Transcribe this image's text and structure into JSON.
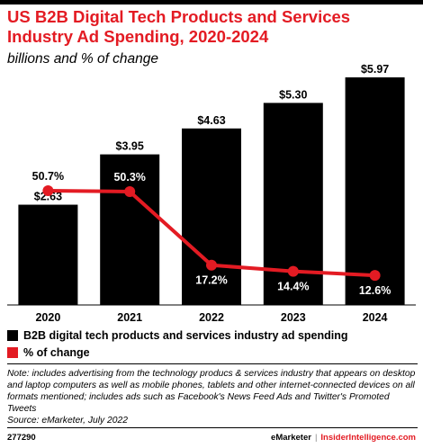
{
  "title": "US B2B Digital Tech Products and Services Industry Ad Spending, 2020-2024",
  "subtitle": "billions and % of change",
  "chart_data": {
    "type": "bar",
    "categories": [
      "2020",
      "2021",
      "2022",
      "2023",
      "2024"
    ],
    "series": [
      {
        "name": "B2B digital tech products and services industry ad spending",
        "type": "bar",
        "values": [
          2.63,
          3.95,
          4.63,
          5.3,
          5.97
        ],
        "labels": [
          "$2.63",
          "$3.95",
          "$4.63",
          "$5.30",
          "$5.97"
        ],
        "color": "#000000"
      },
      {
        "name": "% of change",
        "type": "line",
        "values": [
          50.7,
          50.3,
          17.2,
          14.4,
          12.6
        ],
        "labels": [
          "50.7%",
          "50.3%",
          "17.2%",
          "14.4%",
          "12.6%"
        ],
        "color": "#e31b23"
      }
    ],
    "legend_position": "bottom"
  },
  "legend": {
    "items": [
      {
        "label": "B2B digital tech products and services industry ad spending",
        "color": "#000000"
      },
      {
        "label": "% of change",
        "color": "#e31b23"
      }
    ]
  },
  "note": "Note: includes advertising from the technology producs & services industry that appears on desktop and laptop computers as well as mobile phones, tablets and other internet-connected devices on all formats mentioned; includes ads such as Facebook's News Feed Ads and Twitter's Promoted Tweets",
  "source": "Source: eMarketer, July 2022",
  "footer": {
    "chart_id": "277290",
    "brand_left": "eMarketer",
    "separator": "|",
    "brand_right": "InsiderIntelligence.com"
  },
  "colors": {
    "accent": "#e31b23",
    "bar": "#000000"
  }
}
